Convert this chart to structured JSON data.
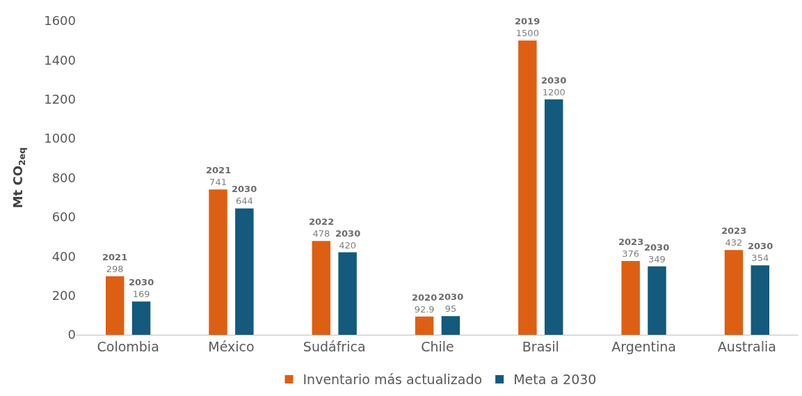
{
  "chart_data": {
    "type": "bar",
    "ylabel": "Mt CO$_{2eq}$",
    "categories": [
      "Colombia",
      "México",
      "Sudáfrica",
      "Chile",
      "Brasil",
      "Argentina",
      "Australia"
    ],
    "series": [
      {
        "name": "Inventario más actualizado",
        "color": "#dd5f13",
        "values": [
          298,
          741,
          478,
          92.9,
          1500,
          376,
          432
        ]
      },
      {
        "name": "Meta a 2030",
        "color": "#135a7c",
        "values": [
          169,
          644,
          420,
          95,
          1200,
          349,
          354
        ]
      }
    ],
    "ylim": [
      0,
      1600
    ],
    "yticks": [
      0,
      200,
      400,
      600,
      800,
      1000,
      1200,
      1400,
      1600
    ],
    "grid": false,
    "legend": "bottom",
    "data_labels": true,
    "annotations": [
      "2021",
      "2030",
      "2021",
      "2030",
      "2022",
      "2030",
      "2020",
      "2030",
      "2019",
      "2030",
      "2023",
      "2030",
      "2023",
      "2030"
    ]
  }
}
